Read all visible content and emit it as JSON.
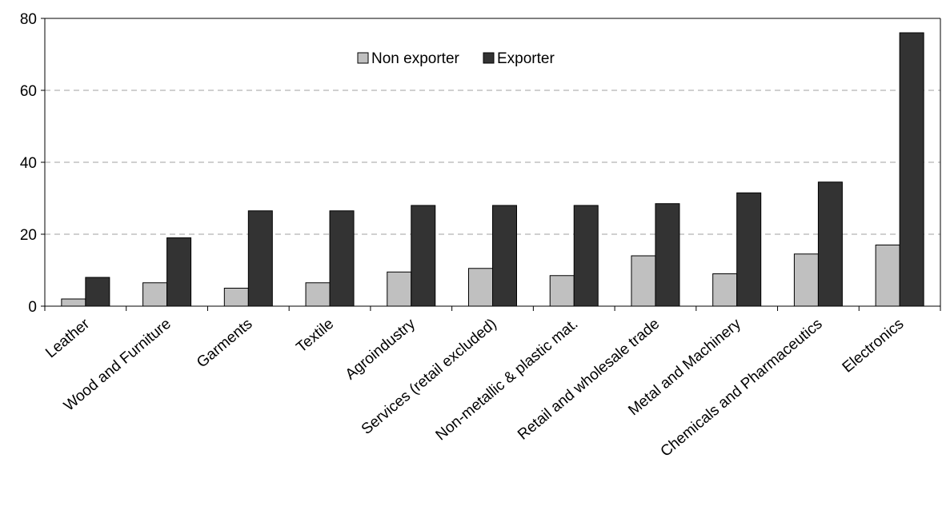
{
  "chart_data": {
    "type": "bar",
    "title": "",
    "xlabel": "",
    "ylabel": "",
    "ylim": [
      0,
      80
    ],
    "yticks": [
      0,
      20,
      40,
      60,
      80
    ],
    "grid": "horizontal dashed at 20, 40, 60",
    "legend_position": "top-center",
    "categories": [
      "Leather",
      "Wood and Furniture",
      "Garments",
      "Textile",
      "Agroindustry",
      "Services (retail excluded)",
      "Non-metallic & plastic mat.",
      "Retail and wholesale trade",
      "Metal and Machinery",
      "Chemicals and Pharmaceutics",
      "Electronics"
    ],
    "series": [
      {
        "name": "Non exporter",
        "color": "#c0c0c0",
        "values": [
          2,
          6.5,
          5,
          6.5,
          9.5,
          10.5,
          8.5,
          14,
          9,
          14.5,
          17
        ]
      },
      {
        "name": "Exporter",
        "color": "#333333",
        "values": [
          8,
          19,
          26.5,
          26.5,
          28,
          28,
          28,
          28.5,
          31.5,
          34.5,
          76
        ]
      }
    ]
  }
}
